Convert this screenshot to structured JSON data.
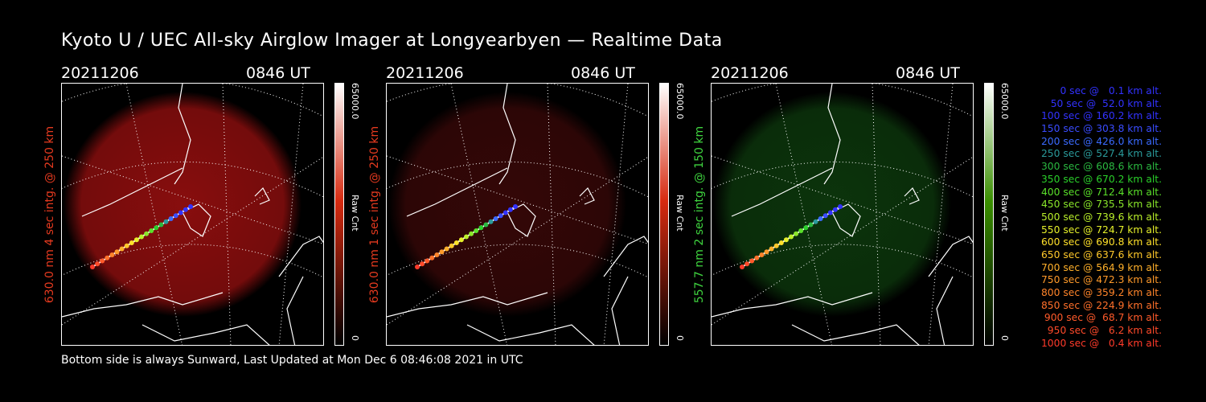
{
  "title": "Kyoto U / UEC All-sky Airglow Imager at Longyearbyen — Realtime Data",
  "footer": "Bottom side is always Sunward, Last Updated at Mon Dec  6 08:46:08 2021 in UTC",
  "panels": [
    {
      "date": "20211206",
      "time": "0846 UT",
      "ylabel": "630.0 nm 4 sec intg. @ 250 km",
      "label_color": "#e53a1f",
      "glow_color": "#a01010",
      "glow_opacity": 0.85,
      "cbar_top": "#ffffff",
      "cbar_mid": "#d62a10",
      "cbar_bottom": "#000000",
      "cbar_max": "65000.0",
      "cbar_unit": "Raw Cnt",
      "cbar_min": "0"
    },
    {
      "date": "20211206",
      "time": "0846 UT",
      "ylabel": "630.0 nm 1 sec intg. @ 250 km",
      "label_color": "#e53a1f",
      "glow_color": "#3a0808",
      "glow_opacity": 0.9,
      "cbar_top": "#ffffff",
      "cbar_mid": "#d62a10",
      "cbar_bottom": "#000000",
      "cbar_max": "65000.0",
      "cbar_unit": "Raw Cnt",
      "cbar_min": "0"
    },
    {
      "date": "20211206",
      "time": "0846 UT",
      "ylabel": "557.7 nm 2 sec intg. @ 150 km",
      "label_color": "#3fd43f",
      "glow_color": "#0d3a0d",
      "glow_opacity": 0.9,
      "cbar_top": "#ffffff",
      "cbar_mid": "#3a8f00",
      "cbar_bottom": "#000000",
      "cbar_max": "65000.0",
      "cbar_unit": "Raw Cnt",
      "cbar_min": "0"
    }
  ],
  "legend": [
    {
      "text": "0 sec @   0.1 km alt.",
      "color": "#3232ff"
    },
    {
      "text": "50 sec @  52.0 km alt.",
      "color": "#3232ff"
    },
    {
      "text": "100 sec @ 160.2 km alt.",
      "color": "#3232ff"
    },
    {
      "text": "150 sec @ 303.8 km alt.",
      "color": "#3a4cff"
    },
    {
      "text": "200 sec @ 426.0 km alt.",
      "color": "#3a6aff"
    },
    {
      "text": "250 sec @ 527.4 km alt.",
      "color": "#2a9a9a"
    },
    {
      "text": "300 sec @ 608.6 km alt.",
      "color": "#2ab840"
    },
    {
      "text": "350 sec @ 670.2 km alt.",
      "color": "#2ad02a"
    },
    {
      "text": "400 sec @ 712.4 km alt.",
      "color": "#5ae02a"
    },
    {
      "text": "450 sec @ 735.5 km alt.",
      "color": "#8ae62a"
    },
    {
      "text": "500 sec @ 739.6 km alt.",
      "color": "#baf02a"
    },
    {
      "text": "550 sec @ 724.7 km alt.",
      "color": "#e6f02a"
    },
    {
      "text": "600 sec @ 690.8 km alt.",
      "color": "#ffe02a"
    },
    {
      "text": "650 sec @ 637.6 km alt.",
      "color": "#ffc82a"
    },
    {
      "text": "700 sec @ 564.9 km alt.",
      "color": "#ffb02a"
    },
    {
      "text": "750 sec @ 472.3 km alt.",
      "color": "#ff9a2a"
    },
    {
      "text": "800 sec @ 359.2 km alt.",
      "color": "#ff842a"
    },
    {
      "text": "850 sec @ 224.9 km alt.",
      "color": "#ff702a"
    },
    {
      "text": "900 sec @  68.7 km alt.",
      "color": "#ff5a2a"
    },
    {
      "text": "950 sec @   6.2 km alt.",
      "color": "#ff4a2a"
    },
    {
      "text": "1000 sec @   0.4 km alt.",
      "color": "#ff3a2a"
    }
  ]
}
